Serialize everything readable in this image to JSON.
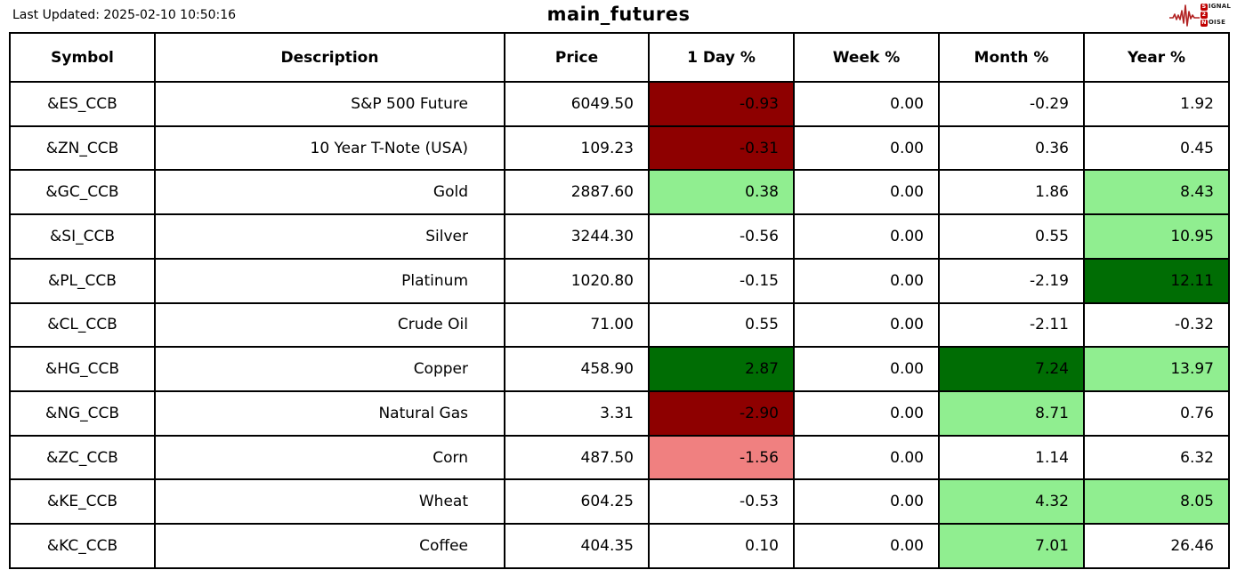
{
  "meta": {
    "last_updated": "Last Updated: 2025-02-10 10:50:16",
    "title": "main_futures",
    "logo": {
      "lines": [
        {
          "badge": "S",
          "rest": "IGNAL"
        },
        {
          "badge": "2",
          "rest": ""
        },
        {
          "badge": "N",
          "rest": "OISE"
        }
      ]
    }
  },
  "colors": {
    "strong_down": "#8e0000",
    "down": "#f08080",
    "up": "#90ee90",
    "strong_up": "#006d04",
    "neutral": "#ffffff",
    "logo_red": "#b22222",
    "border": "#000000"
  },
  "chart_data": {
    "type": "table",
    "columns": [
      "Symbol",
      "Description",
      "Price",
      "1 Day %",
      "Week %",
      "Month %",
      "Year %"
    ],
    "rows": [
      {
        "symbol": "&ES_CCB",
        "description": "S&P 500 Future",
        "price": "6049.50",
        "day": "-0.93",
        "week": "0.00",
        "month": "-0.29",
        "year": "1.92",
        "highlights": {
          "day": "strong_down"
        }
      },
      {
        "symbol": "&ZN_CCB",
        "description": "10 Year T-Note (USA)",
        "price": "109.23",
        "day": "-0.31",
        "week": "0.00",
        "month": "0.36",
        "year": "0.45",
        "highlights": {
          "day": "strong_down"
        }
      },
      {
        "symbol": "&GC_CCB",
        "description": "Gold",
        "price": "2887.60",
        "day": "0.38",
        "week": "0.00",
        "month": "1.86",
        "year": "8.43",
        "highlights": {
          "day": "up",
          "year": "up"
        }
      },
      {
        "symbol": "&SI_CCB",
        "description": "Silver",
        "price": "3244.30",
        "day": "-0.56",
        "week": "0.00",
        "month": "0.55",
        "year": "10.95",
        "highlights": {
          "year": "up"
        }
      },
      {
        "symbol": "&PL_CCB",
        "description": "Platinum",
        "price": "1020.80",
        "day": "-0.15",
        "week": "0.00",
        "month": "-2.19",
        "year": "12.11",
        "highlights": {
          "year": "strong_up"
        }
      },
      {
        "symbol": "&CL_CCB",
        "description": "Crude Oil",
        "price": "71.00",
        "day": "0.55",
        "week": "0.00",
        "month": "-2.11",
        "year": "-0.32",
        "highlights": {}
      },
      {
        "symbol": "&HG_CCB",
        "description": "Copper",
        "price": "458.90",
        "day": "2.87",
        "week": "0.00",
        "month": "7.24",
        "year": "13.97",
        "highlights": {
          "day": "strong_up",
          "month": "strong_up",
          "year": "up"
        }
      },
      {
        "symbol": "&NG_CCB",
        "description": "Natural Gas",
        "price": "3.31",
        "day": "-2.90",
        "week": "0.00",
        "month": "8.71",
        "year": "0.76",
        "highlights": {
          "day": "strong_down",
          "month": "up"
        }
      },
      {
        "symbol": "&ZC_CCB",
        "description": "Corn",
        "price": "487.50",
        "day": "-1.56",
        "week": "0.00",
        "month": "1.14",
        "year": "6.32",
        "highlights": {
          "day": "down"
        }
      },
      {
        "symbol": "&KE_CCB",
        "description": "Wheat",
        "price": "604.25",
        "day": "-0.53",
        "week": "0.00",
        "month": "4.32",
        "year": "8.05",
        "highlights": {
          "month": "up",
          "year": "up"
        }
      },
      {
        "symbol": "&KC_CCB",
        "description": "Coffee",
        "price": "404.35",
        "day": "0.10",
        "week": "0.00",
        "month": "7.01",
        "year": "26.46",
        "highlights": {
          "month": "up"
        }
      }
    ]
  }
}
